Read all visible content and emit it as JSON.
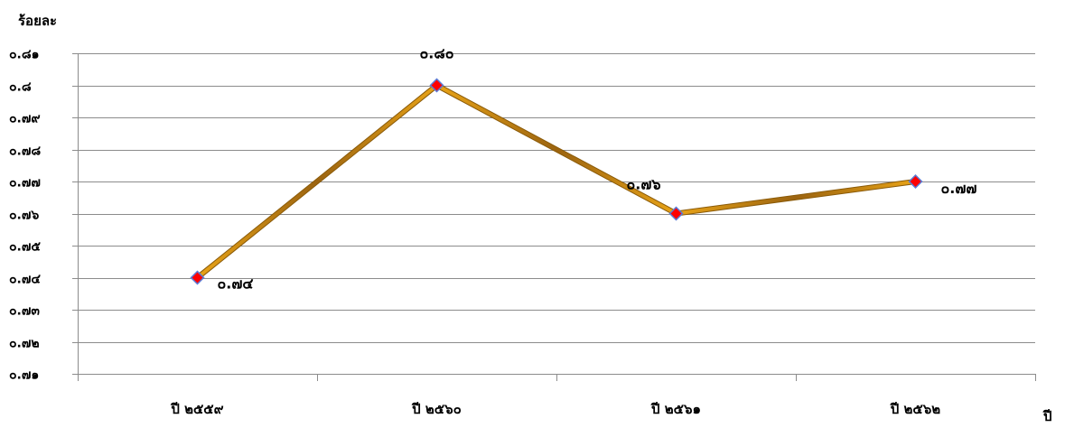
{
  "chart_data": {
    "type": "line",
    "ylabel": "ร้อยละ",
    "xlabel": "ปี",
    "categories": [
      "ปี ๒๕๕๙",
      "ปี ๒๕๖๐",
      "ปี ๒๕๖๑",
      "ปี ๒๕๖๒"
    ],
    "series": [
      {
        "values": [
          0.74,
          0.8,
          0.76,
          0.77
        ],
        "data_labels": [
          "๐.๗๔",
          "๐.๘๐",
          "๐.๗๖",
          "๐.๗๗"
        ],
        "line_color": "#e8a317",
        "marker": "diamond",
        "marker_color": "#ff0000",
        "marker_border_color": "#5b7bd5"
      }
    ],
    "ylim": [
      0.71,
      0.81
    ],
    "y_ticks": [
      0.71,
      0.72,
      0.73,
      0.74,
      0.75,
      0.76,
      0.77,
      0.78,
      0.79,
      0.8,
      0.81
    ],
    "y_tick_labels": [
      "๐.๗๑",
      "๐.๗๒",
      "๐.๗๓",
      "๐.๗๔",
      "๐.๗๕",
      "๐.๗๖",
      "๐.๗๗",
      "๐.๗๘",
      "๐.๗๙",
      "๐.๘",
      "๐.๘๑"
    ],
    "grid": true,
    "gridline_color": "#8c8c8c",
    "legend": "none"
  }
}
